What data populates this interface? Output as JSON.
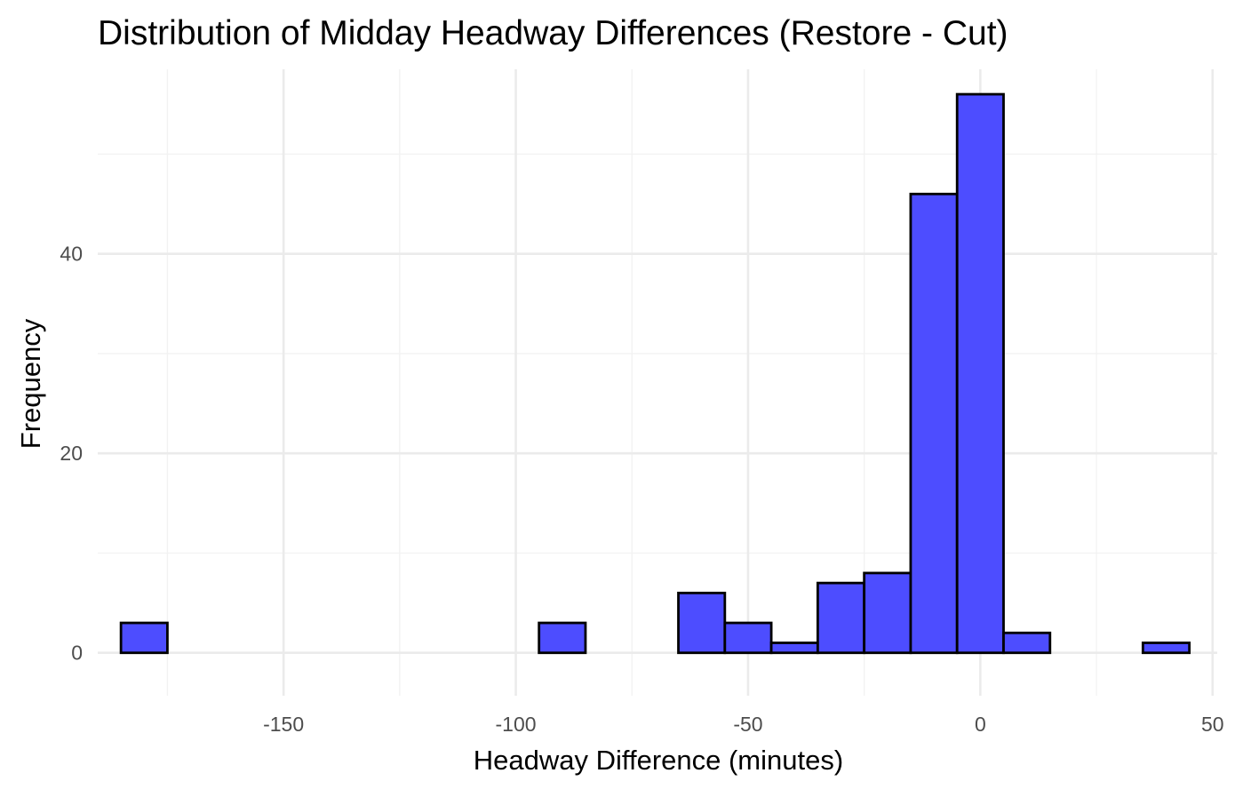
{
  "chart_data": {
    "type": "bar",
    "title": "Distribution of Midday Headway Differences (Restore - Cut)",
    "xlabel": "Headway Difference (minutes)",
    "ylabel": "Frequency",
    "xlim": [
      -190,
      51
    ],
    "ylim": [
      -4.3,
      58.5
    ],
    "x_ticks": [
      -150,
      -100,
      -50,
      0,
      50
    ],
    "x_tick_labels": [
      "-150",
      "-100",
      "-50",
      "0",
      "50"
    ],
    "y_ticks": [
      0,
      20,
      40
    ],
    "y_tick_labels": [
      "0",
      "20",
      "40"
    ],
    "x_minor_gridlines": [
      -175,
      -125,
      -75,
      -25,
      25
    ],
    "y_minor_gridlines": [
      10,
      30,
      50
    ],
    "bin_width": 10,
    "bins": [
      {
        "x0": -185,
        "x1": -175,
        "count": 3
      },
      {
        "x0": -175,
        "x1": -165,
        "count": 0
      },
      {
        "x0": -165,
        "x1": -155,
        "count": 0
      },
      {
        "x0": -155,
        "x1": -145,
        "count": 0
      },
      {
        "x0": -145,
        "x1": -135,
        "count": 0
      },
      {
        "x0": -135,
        "x1": -125,
        "count": 0
      },
      {
        "x0": -125,
        "x1": -115,
        "count": 0
      },
      {
        "x0": -115,
        "x1": -105,
        "count": 0
      },
      {
        "x0": -105,
        "x1": -95,
        "count": 0
      },
      {
        "x0": -95,
        "x1": -85,
        "count": 3
      },
      {
        "x0": -85,
        "x1": -75,
        "count": 0
      },
      {
        "x0": -75,
        "x1": -65,
        "count": 0
      },
      {
        "x0": -65,
        "x1": -55,
        "count": 6
      },
      {
        "x0": -55,
        "x1": -45,
        "count": 3
      },
      {
        "x0": -45,
        "x1": -35,
        "count": 1
      },
      {
        "x0": -35,
        "x1": -25,
        "count": 7
      },
      {
        "x0": -25,
        "x1": -15,
        "count": 8
      },
      {
        "x0": -15,
        "x1": -5,
        "count": 46
      },
      {
        "x0": -5,
        "x1": 5,
        "count": 56
      },
      {
        "x0": 5,
        "x1": 15,
        "count": 2
      },
      {
        "x0": 15,
        "x1": 25,
        "count": 0
      },
      {
        "x0": 25,
        "x1": 35,
        "count": 0
      },
      {
        "x0": 35,
        "x1": 45,
        "count": 1
      }
    ],
    "grid": true,
    "legend": "none",
    "bar_fill_color": "#4d4dff",
    "bar_edge_color": "#000000",
    "grid_major_color": "#ebebeb",
    "grid_minor_color": "#f2f2f2"
  }
}
